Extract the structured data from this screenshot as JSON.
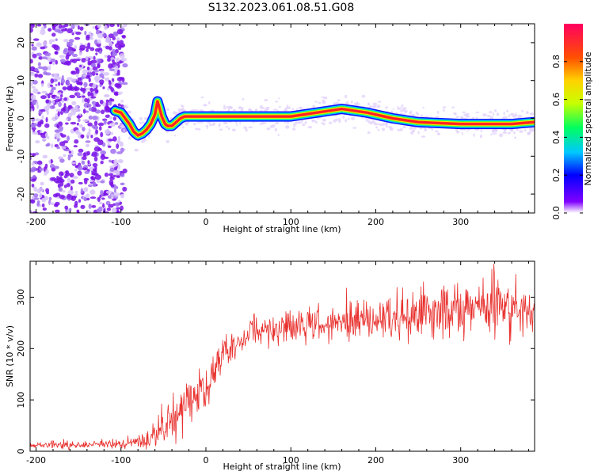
{
  "title": "S132.2023.061.08.51.G08",
  "chart_data": [
    {
      "type": "heatmap",
      "title": "",
      "xlabel": "Height of straight line (km)",
      "ylabel": "Frequency (Hz)",
      "xlim": [
        -207,
        387
      ],
      "ylim": [
        -25,
        25
      ],
      "xticks": [
        -200,
        -100,
        0,
        100,
        200,
        300
      ],
      "yticks": [
        -20,
        -10,
        0,
        10,
        20
      ],
      "ridge": {
        "x": [
          -107,
          -100,
          -95,
          -90,
          -85,
          -80,
          -75,
          -70,
          -65,
          -60,
          -57,
          -55,
          -52,
          -48,
          -45,
          -40,
          -35,
          -30,
          -25,
          -20,
          -10,
          0,
          50,
          100,
          115,
          130,
          145,
          160,
          175,
          190,
          200,
          210,
          220,
          235,
          250,
          270,
          300,
          330,
          360,
          375,
          387
        ],
        "y": [
          2.0,
          1.5,
          0.0,
          -1.5,
          -3.5,
          -4.5,
          -4.0,
          -3.0,
          -1.5,
          1.0,
          4.5,
          3.0,
          0.5,
          -1.5,
          -2.0,
          -2.0,
          -1.0,
          0.0,
          0.5,
          0.5,
          0.5,
          0.5,
          0.5,
          0.5,
          1.0,
          1.5,
          2.0,
          2.5,
          2.0,
          1.5,
          1.0,
          0.5,
          0.0,
          -0.5,
          -1.0,
          -1.2,
          -1.5,
          -1.5,
          -1.5,
          -1.2,
          -1.0
        ]
      },
      "colorbar": {
        "label": "Normalized spectral amplitude",
        "ticks": [
          "0.0",
          "0.2",
          "0.4",
          "0.6",
          "0.8"
        ],
        "range": [
          0,
          1
        ]
      }
    },
    {
      "type": "line",
      "title": "",
      "xlabel": "Height of straight line (km)",
      "ylabel": "SNR (10 * v/v)",
      "xlim": [
        -207,
        387
      ],
      "ylim": [
        0,
        370
      ],
      "xticks": [
        -200,
        -100,
        0,
        100,
        200,
        300
      ],
      "yticks": [
        0,
        100,
        200,
        300
      ],
      "series": [
        {
          "color": "#e8312e",
          "x": [
            -207,
            -180,
            -150,
            -120,
            -90,
            -70,
            -60,
            -50,
            -40,
            -30,
            -20,
            -10,
            0,
            10,
            20,
            30,
            40,
            50,
            60,
            80,
            100,
            120,
            140,
            160,
            180,
            200,
            220,
            240,
            260,
            280,
            300,
            320,
            340,
            360,
            380,
            387
          ],
          "values": [
            12,
            12,
            12,
            13,
            14,
            20,
            30,
            45,
            60,
            80,
            95,
            110,
            125,
            155,
            185,
            200,
            210,
            220,
            228,
            238,
            245,
            248,
            250,
            252,
            255,
            258,
            250,
            255,
            265,
            270,
            272,
            275,
            278,
            272,
            270,
            268
          ],
          "noise": [
            6,
            6,
            6,
            6,
            8,
            15,
            25,
            30,
            35,
            38,
            40,
            40,
            35,
            30,
            28,
            25,
            22,
            22,
            25,
            28,
            30,
            32,
            32,
            32,
            32,
            35,
            40,
            40,
            45,
            45,
            45,
            45,
            45,
            45,
            40,
            40
          ]
        }
      ]
    }
  ]
}
